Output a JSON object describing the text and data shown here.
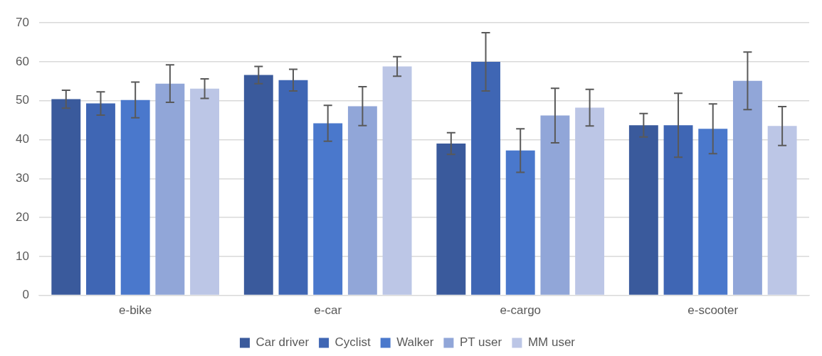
{
  "chart_data": {
    "type": "bar",
    "categories": [
      "e-bike",
      "e-car",
      "e-cargo",
      "e-scooter"
    ],
    "series": [
      {
        "name": "Car driver",
        "color": "#3a5a9c",
        "values": [
          50.4,
          56.6,
          39.0,
          43.7
        ],
        "errors": [
          2.3,
          2.2,
          2.8,
          3.0
        ]
      },
      {
        "name": "Cyclist",
        "color": "#3f66b4",
        "values": [
          49.3,
          55.3,
          60.0,
          43.7
        ],
        "errors": [
          3.0,
          2.8,
          7.5,
          8.2
        ]
      },
      {
        "name": "Walker",
        "color": "#4a78cc",
        "values": [
          50.2,
          44.2,
          37.2,
          42.8
        ],
        "errors": [
          4.6,
          4.6,
          5.6,
          6.4
        ]
      },
      {
        "name": "PT user",
        "color": "#91a6d8",
        "values": [
          54.4,
          48.6,
          46.2,
          55.1
        ],
        "errors": [
          4.8,
          5.0,
          7.0,
          7.4
        ]
      },
      {
        "name": "MM user",
        "color": "#bcc6e6",
        "values": [
          53.1,
          58.8,
          48.2,
          43.5
        ],
        "errors": [
          2.5,
          2.5,
          4.7,
          5.0
        ]
      }
    ],
    "ylim": [
      0,
      70
    ],
    "yticks": [
      0,
      10,
      20,
      30,
      40,
      50,
      60,
      70
    ],
    "grid": "y",
    "legend": "bottom"
  }
}
